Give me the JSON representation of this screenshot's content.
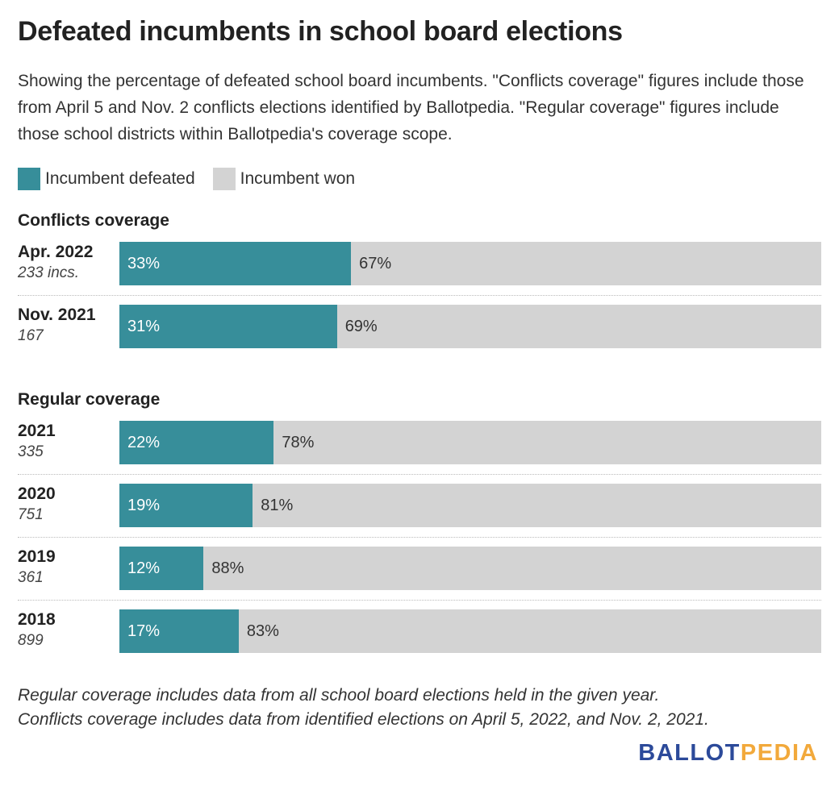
{
  "title": "Defeated incumbents in school board elections",
  "subtitle": "Showing the percentage of defeated school board incumbents. \"Conflicts coverage\" figures include those from April 5 and Nov. 2 conflicts elections identified by Ballotpedia. \"Regular coverage\" figures include those school districts within Ballotpedia's coverage scope.",
  "legend": [
    {
      "label": "Incumbent defeated",
      "color": "#378e9a"
    },
    {
      "label": "Incumbent won",
      "color": "#d3d3d3"
    }
  ],
  "notes": [
    "Regular coverage includes data from all school board elections held in the given year.",
    "Conflicts coverage includes data from identified elections on April 5, 2022, and Nov. 2, 2021."
  ],
  "brand": {
    "part1": "BALLOT",
    "part2": "PEDIA",
    "color1": "#2c4a9a",
    "color2": "#f2a93b"
  },
  "chart_data": {
    "type": "bar",
    "orientation": "horizontal",
    "stacked": true,
    "title": "Defeated incumbents in school board elections",
    "xlim": [
      0,
      100
    ],
    "unit": "%",
    "legend_position": "top-left",
    "grid": false,
    "series": [
      {
        "name": "Incumbent defeated",
        "color": "#378e9a"
      },
      {
        "name": "Incumbent won",
        "color": "#d3d3d3"
      }
    ],
    "groups": [
      {
        "title": "Conflicts coverage",
        "rows": [
          {
            "label": "Apr. 2022",
            "sub": "233 incs.",
            "defeated": 33,
            "won": 67
          },
          {
            "label": "Nov. 2021",
            "sub": "167",
            "defeated": 31,
            "won": 69
          }
        ]
      },
      {
        "title": "Regular coverage",
        "rows": [
          {
            "label": "2021",
            "sub": "335",
            "defeated": 22,
            "won": 78
          },
          {
            "label": "2020",
            "sub": "751",
            "defeated": 19,
            "won": 81
          },
          {
            "label": "2019",
            "sub": "361",
            "defeated": 12,
            "won": 88
          },
          {
            "label": "2018",
            "sub": "899",
            "defeated": 17,
            "won": 83
          }
        ]
      }
    ]
  }
}
